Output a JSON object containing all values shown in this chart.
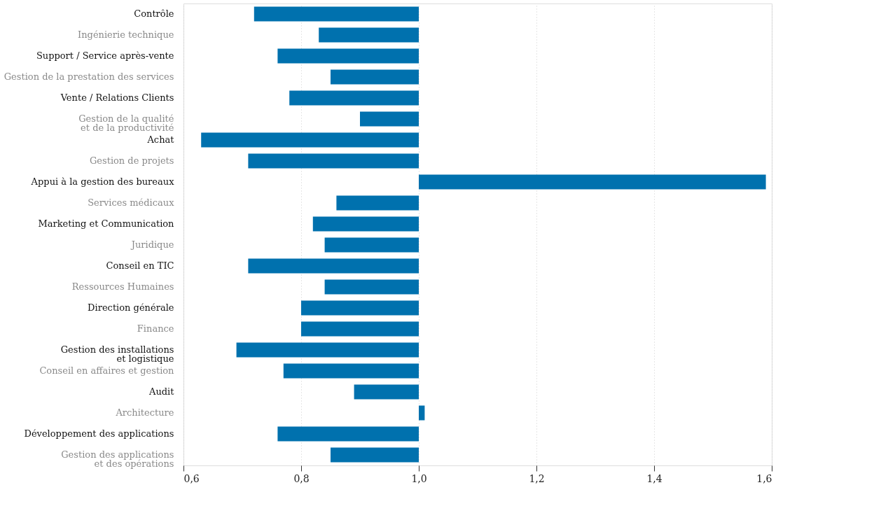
{
  "chart_data": {
    "type": "bar",
    "orientation": "horizontal",
    "categories": [
      "Contrôle",
      "Ingénierie technique",
      "Support / Service après-vente",
      "Gestion de la prestation des services",
      "Vente / Relations Clients",
      "Gestion  de la qualité\net de la productivité",
      "Achat",
      "Gestion de projets",
      "Appui à la gestion des bureaux",
      "Services médicaux",
      "Marketing et Communication",
      "Juridique",
      "Conseil en TIC",
      "Ressources Humaines",
      "Direction générale",
      "Finance",
      "Gestion des installations \net logistique",
      "Conseil en affaires et gestion",
      "Audit",
      "Architecture",
      "Développement des applications",
      "Gestion des applications\net des opérations"
    ],
    "base": [
      1,
      1,
      1,
      1,
      1,
      1,
      1,
      1,
      1,
      1,
      1,
      1,
      1,
      1,
      1,
      1,
      1,
      1,
      1,
      1,
      1,
      1
    ],
    "values": [
      -0.28,
      -0.17,
      -0.24,
      -0.15,
      -0.22,
      -0.1,
      -0.37,
      -0.29,
      0.59,
      -0.14,
      -0.18,
      -0.16,
      -0.29,
      -0.16,
      -0.2,
      -0.2,
      -0.31,
      -0.23,
      -0.11,
      0.01,
      -0.24,
      -0.15
    ],
    "color": "#0071ae",
    "xlim": [
      0.6,
      1.6
    ],
    "xticks": [
      {
        "value": 0.6,
        "label": "0,6"
      },
      {
        "value": 0.8,
        "label": "0,8"
      },
      {
        "value": 1.0,
        "label": "1,0"
      },
      {
        "value": 1.2,
        "label": "1,2"
      },
      {
        "value": 1.4,
        "label": "1,4"
      },
      {
        "value": 1.6,
        "label": "1,6"
      }
    ],
    "grid": "x"
  }
}
